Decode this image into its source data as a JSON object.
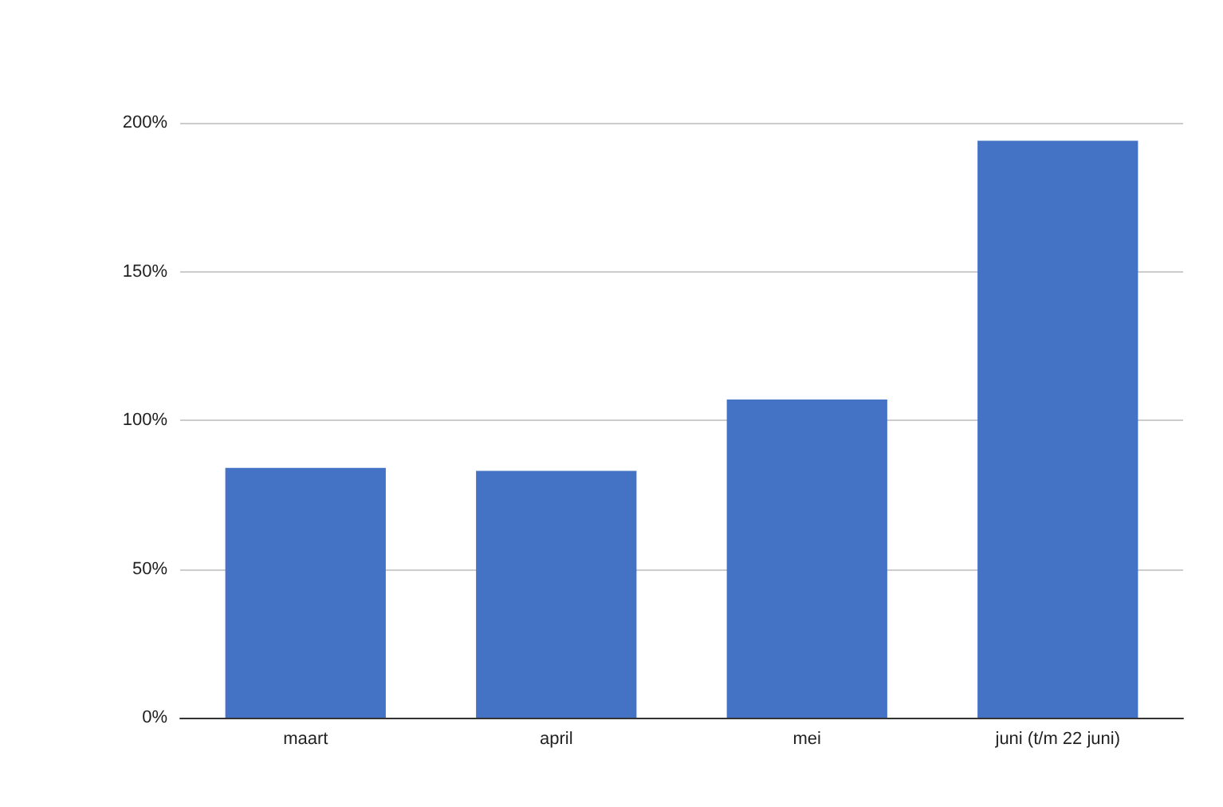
{
  "chart_data": {
    "type": "bar",
    "categories": [
      "maart",
      "april",
      "mei",
      "juni (t/m 22 juni)"
    ],
    "values": [
      84,
      83,
      107,
      194
    ],
    "color": "#4472c4",
    "ylim": [
      0,
      200
    ],
    "yticks": [
      {
        "value": 0,
        "label": "0%"
      },
      {
        "value": 50,
        "label": "50%"
      },
      {
        "value": 100,
        "label": "100%"
      },
      {
        "value": 150,
        "label": "150%"
      },
      {
        "value": 200,
        "label": "200%"
      }
    ],
    "grid": "y"
  }
}
